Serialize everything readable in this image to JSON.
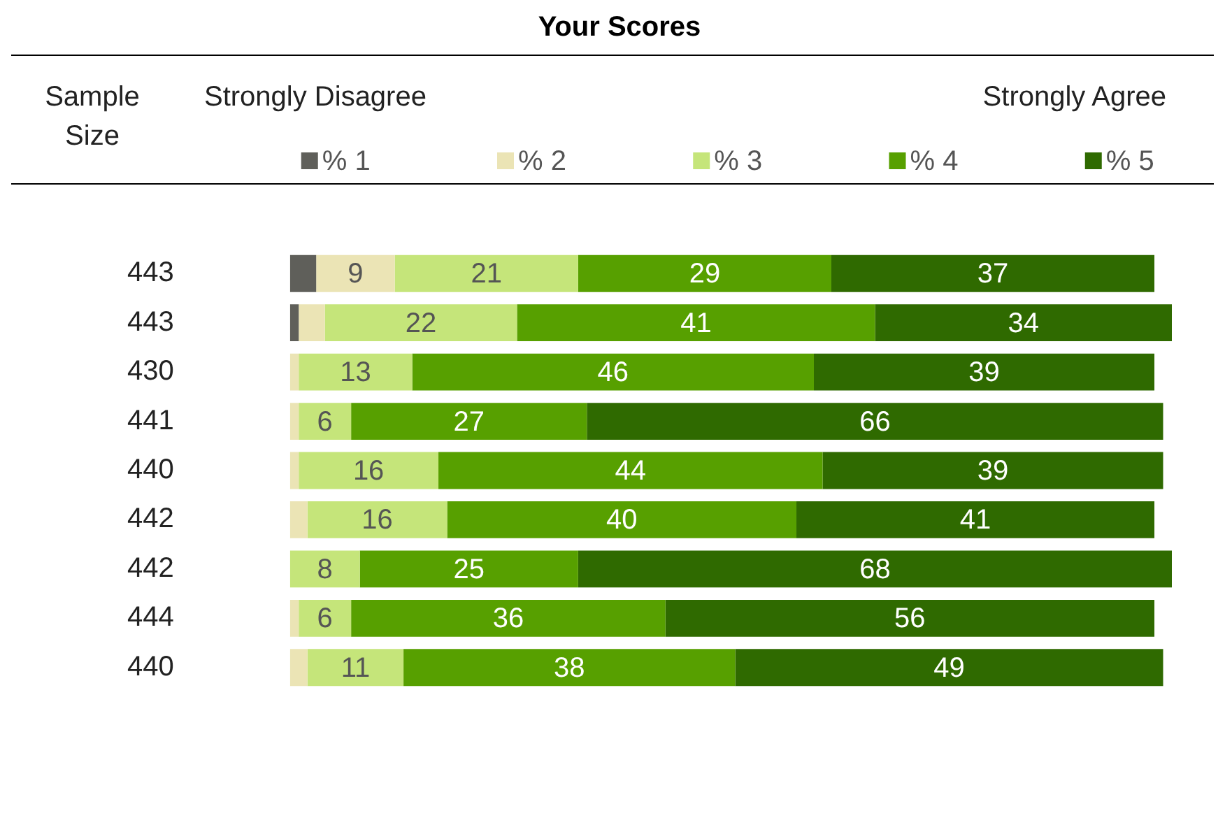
{
  "chart_data": {
    "type": "bar",
    "orientation": "horizontal",
    "stacked": true,
    "title": "Your Scores",
    "annotations": [
      "Sample Size",
      "Strongly Disagree",
      "Strongly Agree"
    ],
    "categories": [
      "443",
      "443",
      "430",
      "441",
      "440",
      "442",
      "442",
      "444",
      "440"
    ],
    "xlim": [
      0,
      101
    ],
    "tick_labels": "y",
    "legend": "top",
    "grid": false,
    "series": [
      {
        "name": "% 1",
        "color": "#5f5f5a",
        "values": [
          3,
          1,
          0,
          0,
          0,
          0,
          0,
          0,
          0
        ],
        "value_labels": [
          null,
          null,
          null,
          null,
          null,
          null,
          null,
          null,
          null
        ]
      },
      {
        "name": "% 2",
        "color": "#ebe4b5",
        "values": [
          9,
          3,
          1,
          1,
          1,
          2,
          0,
          1,
          2
        ],
        "value_labels": [
          "9",
          null,
          null,
          null,
          null,
          null,
          null,
          null,
          null
        ]
      },
      {
        "name": "% 3",
        "color": "#c5e57a",
        "values": [
          21,
          22,
          13,
          6,
          16,
          16,
          8,
          6,
          11
        ],
        "value_labels": [
          "21",
          "22",
          "13",
          "6",
          "16",
          "16",
          "8",
          "6",
          "11"
        ]
      },
      {
        "name": "% 4",
        "color": "#57a000",
        "values": [
          29,
          41,
          46,
          27,
          44,
          40,
          25,
          36,
          38
        ],
        "value_labels": [
          "29",
          "41",
          "46",
          "27",
          "44",
          "40",
          "25",
          "36",
          "38"
        ]
      },
      {
        "name": "% 5",
        "color": "#2f6a00",
        "values": [
          37,
          34,
          39,
          66,
          39,
          41,
          68,
          56,
          49
        ],
        "value_labels": [
          "37",
          "34",
          "39",
          "66",
          "39",
          "41",
          "68",
          "56",
          "49"
        ]
      }
    ]
  }
}
